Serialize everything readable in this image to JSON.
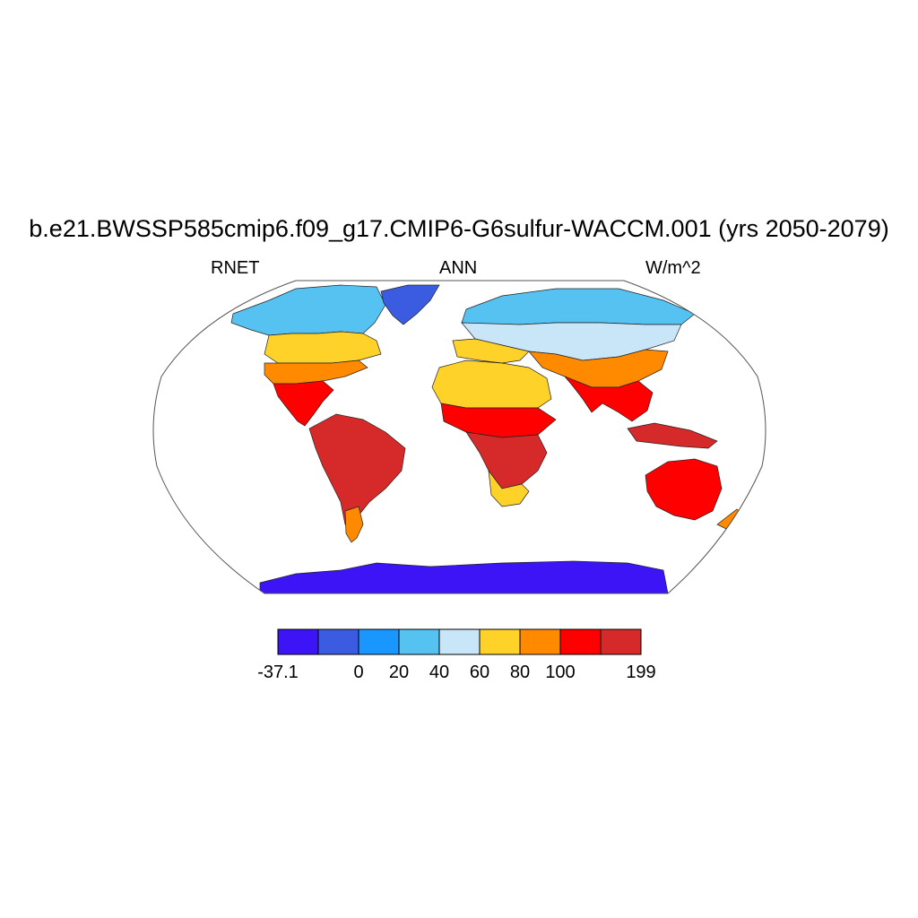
{
  "figure": {
    "title": "b.e21.BWSSP585cmip6.f09_g17.CMIP6-G6sulfur-WACCM.001 (yrs 2050-2079)",
    "left_label": "RNET",
    "center_label": "ANN",
    "right_label": "W/m^2"
  },
  "map": {
    "projection": "Robinson",
    "field": "annual mean net radiation over land",
    "ocean_masked": true
  },
  "colorbar": {
    "colors": [
      "#3c14f5",
      "#3b5ce0",
      "#1a96ff",
      "#55c2f2",
      "#c8e6f7",
      "#ffd22a",
      "#ff8a00",
      "#ff0000",
      "#d62a2a"
    ],
    "tick_labels": [
      "-37.1",
      "0",
      "20",
      "40",
      "60",
      "80",
      "100",
      "199"
    ],
    "tick_box_edges": [
      0,
      2,
      3,
      4,
      5,
      6,
      7,
      9
    ]
  }
}
